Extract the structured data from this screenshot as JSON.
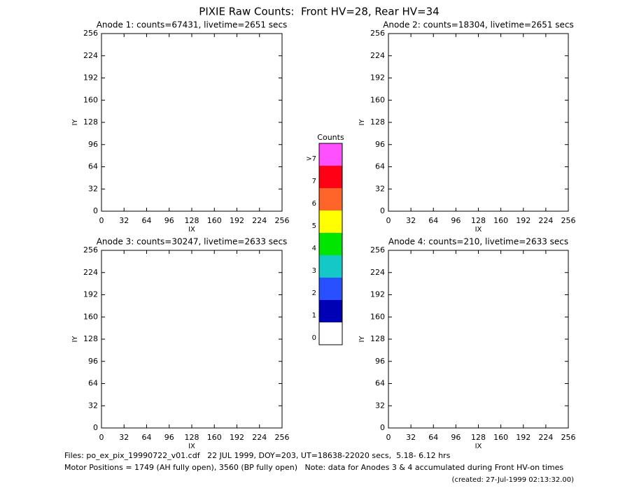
{
  "title": "PIXIE Raw Counts:  Front HV=28, Rear HV=34",
  "chart_data": [
    {
      "type": "heatmap",
      "title": "Anode 1: counts=67431, livetime=2651 secs",
      "xlabel": "IX",
      "ylabel": "IY",
      "xlim": [
        0,
        256
      ],
      "ylim": [
        0,
        256
      ],
      "xticks": [
        0,
        32,
        64,
        96,
        128,
        160,
        192,
        224,
        256
      ],
      "yticks": [
        0,
        32,
        64,
        96,
        128,
        160,
        192,
        224,
        256
      ]
    },
    {
      "type": "heatmap",
      "title": "Anode 2: counts=18304, livetime=2651 secs",
      "xlabel": "IX",
      "ylabel": "IY",
      "xlim": [
        0,
        256
      ],
      "ylim": [
        0,
        256
      ],
      "xticks": [
        0,
        32,
        64,
        96,
        128,
        160,
        192,
        224,
        256
      ],
      "yticks": [
        0,
        32,
        64,
        96,
        128,
        160,
        192,
        224,
        256
      ]
    },
    {
      "type": "heatmap",
      "title": "Anode 3: counts=30247, livetime=2633 secs",
      "xlabel": "IX",
      "ylabel": "IY",
      "xlim": [
        0,
        256
      ],
      "ylim": [
        0,
        256
      ],
      "xticks": [
        0,
        32,
        64,
        96,
        128,
        160,
        192,
        224,
        256
      ],
      "yticks": [
        0,
        32,
        64,
        96,
        128,
        160,
        192,
        224,
        256
      ]
    },
    {
      "type": "heatmap",
      "title": "Anode 4: counts=210, livetime=2633 secs",
      "xlabel": "IX",
      "ylabel": "IY",
      "xlim": [
        0,
        256
      ],
      "ylim": [
        0,
        256
      ],
      "xticks": [
        0,
        32,
        64,
        96,
        128,
        160,
        192,
        224,
        256
      ],
      "yticks": [
        0,
        32,
        64,
        96,
        128,
        160,
        192,
        224,
        256
      ]
    },
    {
      "type": "colorbar",
      "title": "Counts",
      "categories": [
        "0",
        "1",
        "2",
        "3",
        "4",
        "5",
        "6",
        "7",
        ">7"
      ],
      "colors": [
        "#ffffff",
        "#0000b4",
        "#2850ff",
        "#14c8c8",
        "#00e600",
        "#ffff00",
        "#ff6428",
        "#ff0014",
        "#ff50ff"
      ]
    }
  ],
  "footer": [
    "Files: po_ex_pix_19990722_v01.cdf   22 JUL 1999, DOY=203, UT=18638-22020 secs,  5.18- 6.12 hrs",
    "Motor Positions = 1749 (AH fully open), 3560 (BP fully open)   Note: data for Anodes 3 & 4 accumulated during Front HV-on times",
    "(created: 27-Jul-1999 02:13:32.00)"
  ]
}
